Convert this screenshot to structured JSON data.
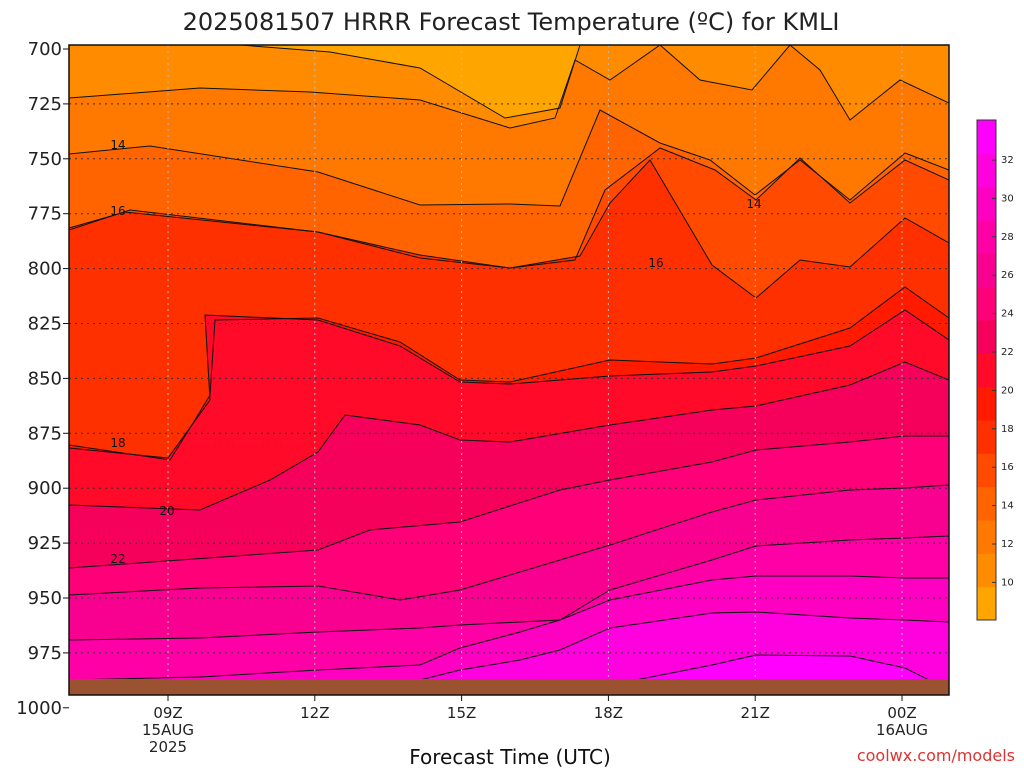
{
  "title": "2025081507 HRRR Forecast Temperature (ºC) for KMLI",
  "xlabel": "Forecast Time (UTC)",
  "credit": "coolwx.com/models",
  "colors": {
    "ground": "#9a5230",
    "bands": [
      "#ffa500",
      "#ff8c00",
      "#ff7800",
      "#ff6400",
      "#ff4a00",
      "#ff3000",
      "#ff1a00",
      "#ff0a28",
      "#f5005a",
      "#ff0078",
      "#f80090",
      "#ff00a6",
      "#ff00c2",
      "#ff00de",
      "#ff00ff"
    ]
  },
  "chart_data": {
    "type": "contour",
    "y_unit": "hPa",
    "y_ticks": [
      "700",
      "725",
      "750",
      "775",
      "800",
      "825",
      "850",
      "875",
      "900",
      "925",
      "950",
      "975",
      "1000"
    ],
    "x_ticks": [
      {
        "lines": [
          "09Z",
          "15AUG",
          "2025"
        ]
      },
      {
        "lines": [
          "12Z"
        ]
      },
      {
        "lines": [
          "15Z"
        ]
      },
      {
        "lines": [
          "18Z"
        ]
      },
      {
        "lines": [
          "21Z"
        ]
      },
      {
        "lines": [
          "00Z",
          "16AUG"
        ]
      }
    ],
    "colorbar_ticks": [
      "32",
      "30",
      "28",
      "26",
      "24",
      "22",
      "20",
      "18",
      "16",
      "14",
      "12",
      "10"
    ],
    "contour_labels": [
      "14",
      "16",
      "18",
      "20",
      "22",
      "14",
      "16"
    ]
  }
}
